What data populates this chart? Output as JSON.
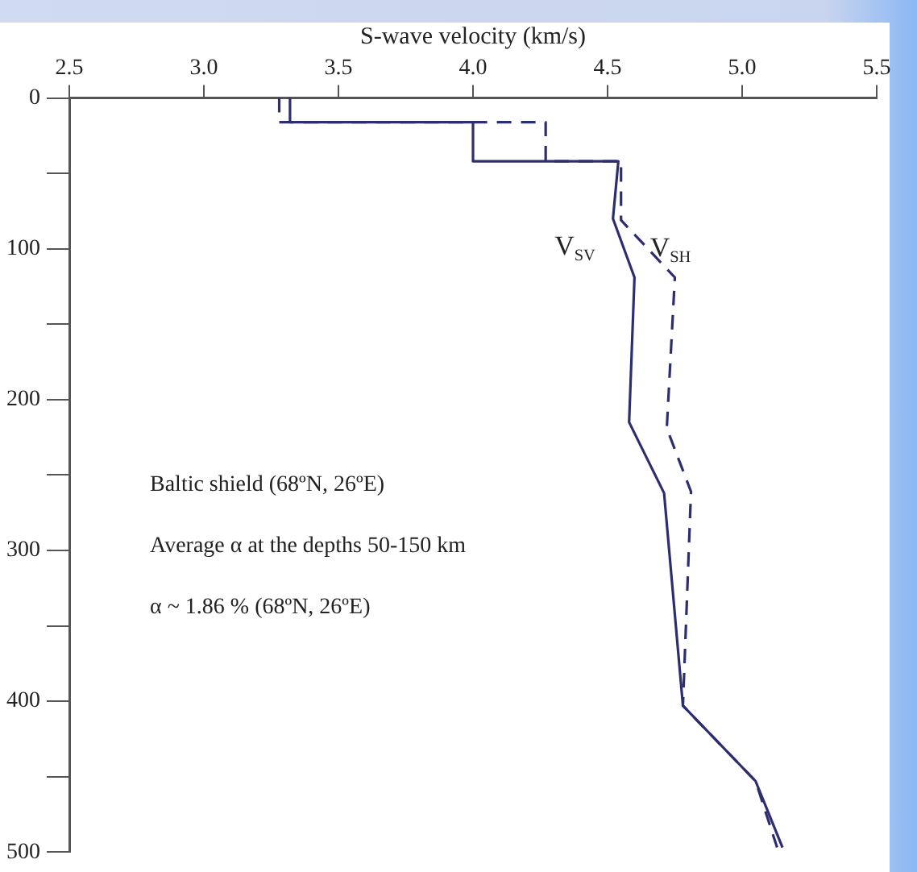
{
  "chart_data": {
    "type": "line",
    "xlabel": "S-wave velocity (km/s)",
    "xlim": [
      2.5,
      5.5
    ],
    "xticks": [
      2.5,
      {
        "value": 3,
        "label": "3.0"
      },
      3.5,
      {
        "value": 4,
        "label": "4.0"
      },
      4.5,
      {
        "value": 5,
        "label": "5.0"
      },
      5.5
    ],
    "ylim": [
      500,
      0
    ],
    "yticks": [
      0,
      {
        "value": 50,
        "label": null
      },
      100,
      {
        "value": 150,
        "label": null
      },
      200,
      {
        "value": 250,
        "label": null
      },
      300,
      {
        "value": 350,
        "label": null
      },
      400,
      {
        "value": 450,
        "label": null
      },
      500
    ],
    "grid": false,
    "legend": false,
    "marker": "none",
    "series": [
      {
        "name": "V$_{SV}$",
        "color": "#2e2e6e",
        "line_style": "solid",
        "x": [
          3.32,
          3.32,
          4.0,
          4.0,
          4.54,
          4.52,
          4.6,
          4.58,
          4.71,
          4.78,
          5.05,
          5.15
        ],
        "values": [
          0,
          16,
          16,
          42,
          42,
          80,
          119,
          215,
          262,
          403,
          453,
          497
        ]
      },
      {
        "name": "V$_{SH}$",
        "color": "#2e2e6e",
        "line_style": "dashed",
        "x": [
          3.28,
          3.28,
          4.27,
          4.27,
          4.55,
          4.55,
          4.75,
          4.72,
          4.81,
          4.78,
          5.05,
          5.13
        ],
        "values": [
          0,
          16,
          16,
          42,
          42,
          81,
          119,
          219,
          261,
          403,
          453,
          497
        ]
      }
    ],
    "annotations": [
      "Baltic shield (68ºN, 26ºE)",
      "Average α at the depths 50-150 km",
      "α ~ 1.86 % (68ºN, 26ºE)"
    ]
  }
}
